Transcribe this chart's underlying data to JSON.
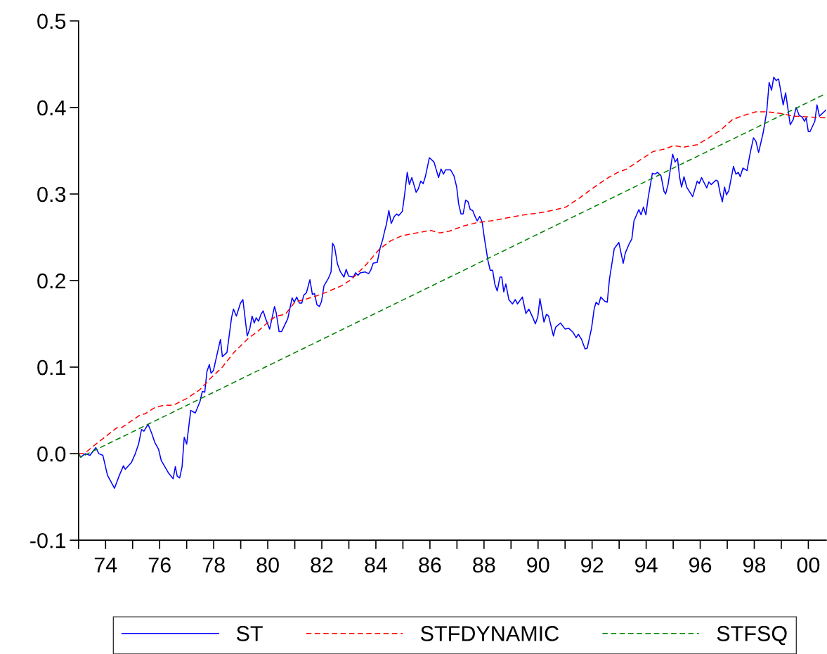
{
  "chart_data": {
    "type": "line",
    "xlim": [
      1973,
      2000.66
    ],
    "ylim": [
      -0.1,
      0.5
    ],
    "xticks": [
      {
        "value": 1973,
        "label": null
      },
      {
        "value": 1974,
        "label": "74"
      },
      {
        "value": 1975,
        "label": null
      },
      {
        "value": 1976,
        "label": "76"
      },
      {
        "value": 1977,
        "label": null
      },
      {
        "value": 1978,
        "label": "78"
      },
      {
        "value": 1979,
        "label": null
      },
      {
        "value": 1980,
        "label": "80"
      },
      {
        "value": 1981,
        "label": null
      },
      {
        "value": 1982,
        "label": "82"
      },
      {
        "value": 1983,
        "label": null
      },
      {
        "value": 1984,
        "label": "84"
      },
      {
        "value": 1985,
        "label": null
      },
      {
        "value": 1986,
        "label": "86"
      },
      {
        "value": 1987,
        "label": null
      },
      {
        "value": 1988,
        "label": "88"
      },
      {
        "value": 1989,
        "label": null
      },
      {
        "value": 1990,
        "label": "90"
      },
      {
        "value": 1991,
        "label": null
      },
      {
        "value": 1992,
        "label": "92"
      },
      {
        "value": 1993,
        "label": null
      },
      {
        "value": 1994,
        "label": "94"
      },
      {
        "value": 1995,
        "label": null
      },
      {
        "value": 1996,
        "label": "96"
      },
      {
        "value": 1997,
        "label": null
      },
      {
        "value": 1998,
        "label": "98"
      },
      {
        "value": 1999,
        "label": null
      },
      {
        "value": 2000,
        "label": "00"
      }
    ],
    "yticks": [
      -0.1,
      {
        "value": 0,
        "label": "0.0"
      },
      0.1,
      0.2,
      0.3,
      0.4,
      0.5
    ],
    "grid": false,
    "legend": "bottom",
    "marker": "none",
    "series": [
      {
        "name": "ST",
        "color": "#0000ff",
        "line_style": "solid",
        "x": [
          1973.0,
          1973.08,
          1973.25,
          1973.42,
          1973.64,
          1973.75,
          1973.9,
          1974.07,
          1974.33,
          1974.51,
          1974.66,
          1974.73,
          1974.96,
          1975.1,
          1975.22,
          1975.33,
          1975.42,
          1975.57,
          1975.7,
          1975.82,
          1975.96,
          1976.06,
          1976.32,
          1976.5,
          1976.58,
          1976.65,
          1976.74,
          1976.83,
          1976.91,
          1977.0,
          1977.15,
          1977.32,
          1977.49,
          1977.58,
          1977.67,
          1977.75,
          1977.84,
          1977.9,
          1977.99,
          1978.14,
          1978.25,
          1978.32,
          1978.49,
          1978.66,
          1978.73,
          1978.84,
          1978.99,
          1979.08,
          1979.24,
          1979.34,
          1979.42,
          1979.5,
          1979.57,
          1979.66,
          1979.75,
          1979.83,
          1979.92,
          1980.07,
          1980.25,
          1980.31,
          1980.42,
          1980.51,
          1980.74,
          1980.9,
          1980.98,
          1981.07,
          1981.17,
          1981.26,
          1981.33,
          1981.43,
          1981.56,
          1981.65,
          1981.73,
          1981.82,
          1981.91,
          1981.99,
          1982.08,
          1982.25,
          1982.34,
          1982.4,
          1982.47,
          1982.58,
          1982.69,
          1982.82,
          1982.9,
          1982.99,
          1983.16,
          1983.25,
          1983.34,
          1983.42,
          1983.6,
          1983.73,
          1983.81,
          1983.9,
          1984.05,
          1984.16,
          1984.25,
          1984.33,
          1984.39,
          1984.48,
          1984.57,
          1984.68,
          1984.77,
          1984.84,
          1984.98,
          1985.07,
          1985.16,
          1985.24,
          1985.33,
          1985.49,
          1985.57,
          1985.66,
          1985.75,
          1985.83,
          1985.98,
          1986.15,
          1986.32,
          1986.41,
          1986.5,
          1986.58,
          1986.76,
          1986.89,
          1986.99,
          1987.06,
          1987.15,
          1987.23,
          1987.32,
          1987.41,
          1987.49,
          1987.58,
          1987.67,
          1987.75,
          1987.84,
          1987.93,
          1988.01,
          1988.14,
          1988.23,
          1988.32,
          1988.4,
          1988.49,
          1988.59,
          1988.66,
          1988.73,
          1988.81,
          1988.92,
          1989.05,
          1989.16,
          1989.24,
          1989.42,
          1989.55,
          1989.66,
          1989.81,
          1989.9,
          1989.99,
          1990.07,
          1990.22,
          1990.31,
          1990.39,
          1990.57,
          1990.65,
          1990.83,
          1991.0,
          1991.13,
          1991.3,
          1991.41,
          1991.49,
          1991.61,
          1991.74,
          1991.82,
          1991.98,
          1992.08,
          1992.15,
          1992.24,
          1992.32,
          1992.47,
          1992.56,
          1992.64,
          1992.82,
          1992.99,
          1993.15,
          1993.23,
          1993.38,
          1993.47,
          1993.55,
          1993.73,
          1993.81,
          1993.9,
          1993.99,
          1994.07,
          1994.23,
          1994.32,
          1994.42,
          1994.55,
          1994.66,
          1994.72,
          1994.81,
          1994.98,
          1995.07,
          1995.16,
          1995.24,
          1995.31,
          1995.4,
          1995.5,
          1995.72,
          1995.89,
          1995.96,
          1996.05,
          1996.24,
          1996.32,
          1996.41,
          1996.58,
          1996.65,
          1996.73,
          1996.82,
          1996.9,
          1996.97,
          1997.06,
          1997.23,
          1997.32,
          1997.41,
          1997.48,
          1997.58,
          1997.73,
          1997.84,
          1997.97,
          1998.06,
          1998.16,
          1998.33,
          1998.46,
          1998.55,
          1998.64,
          1998.72,
          1998.81,
          1998.9,
          1999.07,
          1999.16,
          1999.33,
          1999.44,
          1999.55,
          1999.66,
          1999.77,
          1999.86,
          1999.92,
          2000.0,
          2000.06,
          2000.24,
          2000.32,
          2000.41,
          2000.65
        ],
        "values": [
          0.0,
          -0.004,
          0.0,
          -0.002,
          0.007,
          0.0,
          -0.002,
          -0.025,
          -0.04,
          -0.025,
          -0.014,
          -0.018,
          -0.01,
          0.0,
          0.011,
          0.028,
          0.026,
          0.034,
          0.024,
          0.013,
          0.005,
          -0.008,
          -0.022,
          -0.029,
          -0.015,
          -0.026,
          -0.028,
          -0.015,
          0.019,
          0.011,
          0.05,
          0.047,
          0.06,
          0.072,
          0.071,
          0.095,
          0.103,
          0.093,
          0.096,
          0.117,
          0.132,
          0.112,
          0.117,
          0.157,
          0.167,
          0.159,
          0.174,
          0.178,
          0.136,
          0.145,
          0.159,
          0.151,
          0.157,
          0.153,
          0.161,
          0.165,
          0.156,
          0.144,
          0.17,
          0.163,
          0.141,
          0.141,
          0.156,
          0.18,
          0.175,
          0.181,
          0.174,
          0.174,
          0.183,
          0.186,
          0.201,
          0.184,
          0.185,
          0.172,
          0.17,
          0.176,
          0.194,
          0.203,
          0.21,
          0.243,
          0.239,
          0.219,
          0.21,
          0.204,
          0.213,
          0.205,
          0.204,
          0.209,
          0.206,
          0.209,
          0.21,
          0.208,
          0.212,
          0.22,
          0.221,
          0.238,
          0.247,
          0.258,
          0.265,
          0.281,
          0.266,
          0.274,
          0.277,
          0.275,
          0.28,
          0.301,
          0.325,
          0.311,
          0.319,
          0.302,
          0.306,
          0.315,
          0.312,
          0.32,
          0.342,
          0.337,
          0.319,
          0.329,
          0.323,
          0.328,
          0.328,
          0.321,
          0.308,
          0.289,
          0.277,
          0.277,
          0.293,
          0.291,
          0.282,
          0.281,
          0.274,
          0.269,
          0.274,
          0.268,
          0.25,
          0.224,
          0.212,
          0.212,
          0.196,
          0.188,
          0.204,
          0.204,
          0.187,
          0.196,
          0.178,
          0.173,
          0.178,
          0.173,
          0.181,
          0.162,
          0.167,
          0.157,
          0.15,
          0.158,
          0.179,
          0.152,
          0.161,
          0.159,
          0.136,
          0.146,
          0.151,
          0.144,
          0.145,
          0.14,
          0.134,
          0.138,
          0.132,
          0.121,
          0.122,
          0.145,
          0.168,
          0.175,
          0.172,
          0.181,
          0.176,
          0.175,
          0.201,
          0.237,
          0.244,
          0.22,
          0.232,
          0.243,
          0.248,
          0.269,
          0.282,
          0.276,
          0.285,
          0.276,
          0.295,
          0.324,
          0.323,
          0.325,
          0.321,
          0.303,
          0.3,
          0.311,
          0.346,
          0.337,
          0.341,
          0.319,
          0.308,
          0.32,
          0.308,
          0.297,
          0.315,
          0.312,
          0.319,
          0.307,
          0.314,
          0.311,
          0.316,
          0.315,
          0.302,
          0.291,
          0.308,
          0.299,
          0.304,
          0.332,
          0.323,
          0.325,
          0.32,
          0.33,
          0.327,
          0.346,
          0.365,
          0.361,
          0.348,
          0.371,
          0.395,
          0.429,
          0.42,
          0.435,
          0.431,
          0.433,
          0.403,
          0.417,
          0.38,
          0.386,
          0.4,
          0.391,
          0.389,
          0.384,
          0.388,
          0.372,
          0.372,
          0.384,
          0.403,
          0.39,
          0.397
        ]
      },
      {
        "name": "STFDYNAMIC",
        "color": "#ff0000",
        "line_style": "dashed",
        "x": [
          1973.0,
          1973.21,
          1973.64,
          1974.42,
          1974.59,
          1975.29,
          1975.46,
          1975.81,
          1976.15,
          1976.5,
          1977.02,
          1977.49,
          1977.88,
          1978.32,
          1978.75,
          1979.27,
          1979.62,
          1980.05,
          1980.31,
          1980.65,
          1981.0,
          1981.69,
          1982.21,
          1982.73,
          1983.08,
          1983.6,
          1984.12,
          1984.55,
          1984.98,
          1985.5,
          1986.02,
          1986.37,
          1986.71,
          1987.23,
          1987.75,
          1988.27,
          1988.79,
          1989.49,
          1990.01,
          1990.52,
          1991.04,
          1991.56,
          1992.08,
          1992.6,
          1992.95,
          1993.29,
          1993.81,
          1994.25,
          1994.68,
          1995.03,
          1995.37,
          1995.89,
          1996.32,
          1996.76,
          1997.19,
          1997.62,
          1998.06,
          1998.49,
          1999.01,
          1999.44,
          2000.05,
          2000.65
        ],
        "values": [
          0.0,
          0.0,
          0.011,
          0.03,
          0.03,
          0.045,
          0.046,
          0.053,
          0.056,
          0.056,
          0.064,
          0.074,
          0.087,
          0.1,
          0.117,
          0.133,
          0.141,
          0.153,
          0.159,
          0.161,
          0.175,
          0.181,
          0.187,
          0.194,
          0.201,
          0.217,
          0.236,
          0.246,
          0.252,
          0.255,
          0.258,
          0.255,
          0.257,
          0.263,
          0.267,
          0.269,
          0.272,
          0.276,
          0.278,
          0.281,
          0.285,
          0.296,
          0.308,
          0.319,
          0.325,
          0.329,
          0.34,
          0.349,
          0.352,
          0.356,
          0.354,
          0.357,
          0.365,
          0.374,
          0.386,
          0.391,
          0.395,
          0.395,
          0.393,
          0.39,
          0.389,
          0.388
        ]
      },
      {
        "name": "STFSQ",
        "color": "#008000",
        "line_style": "dashed",
        "x": [
          1973.0,
          1973.08,
          2000.65
        ],
        "values": [
          0.0,
          -0.004,
          0.416
        ]
      }
    ]
  }
}
